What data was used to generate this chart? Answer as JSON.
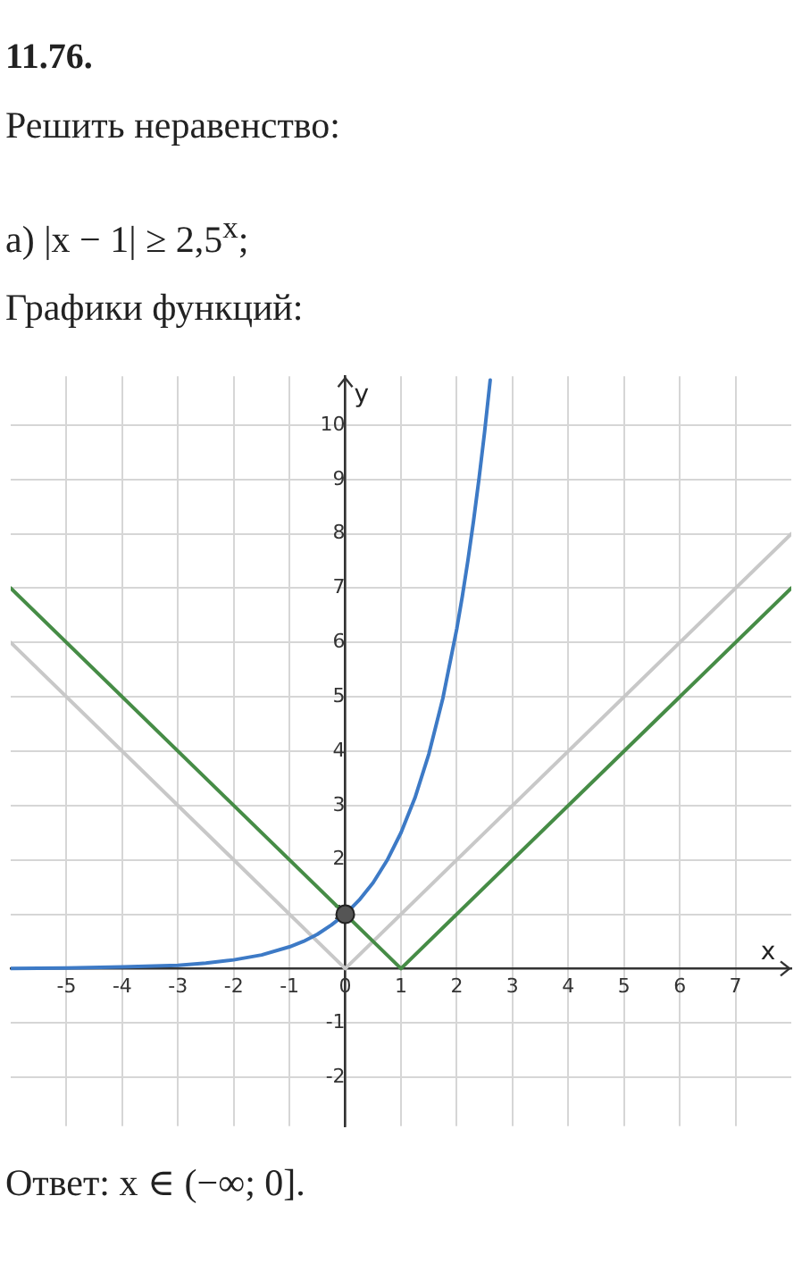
{
  "chart_data": {
    "type": "line",
    "title": "11.76.",
    "subtitle": "Решить неравенство:",
    "xlabel": "x",
    "ylabel": "y",
    "annotations": [
      "а) |x − 1| ≥ 2,5$^{x}$;",
      "Графики функций:",
      "Ответ: x ∈ (−∞; 0]."
    ],
    "series": [
      {
        "color": "#c8c8c8",
        "x": [
          -6,
          0,
          8
        ],
        "values": [
          6,
          0,
          8
        ]
      },
      {
        "color": "#468c46",
        "x": [
          -6,
          1,
          8
        ],
        "values": [
          7,
          0,
          7
        ]
      },
      {
        "color": "#3d7ac6",
        "x": [
          -6,
          -5,
          -4,
          -3,
          -2.5,
          -2,
          -1.5,
          -1,
          -0.75,
          -0.5,
          -0.25,
          0,
          0.25,
          0.5,
          0.75,
          1,
          1.25,
          1.5,
          1.75,
          2,
          2.1,
          2.2,
          2.3,
          2.4,
          2.5,
          2.6
        ],
        "values": [
          0,
          0.01,
          0.03,
          0.06,
          0.1,
          0.16,
          0.25,
          0.4,
          0.5,
          0.63,
          0.8,
          1,
          1.26,
          1.58,
          1.99,
          2.5,
          3.14,
          3.95,
          4.97,
          6.25,
          6.85,
          7.51,
          8.23,
          9.02,
          9.88,
          10.83
        ]
      },
      {
        "type": "scatter",
        "color": "#555555",
        "marker": "circle",
        "x": [
          0
        ],
        "values": [
          1
        ]
      }
    ],
    "xlim": [
      -6,
      8
    ],
    "ylim": [
      -2.9,
      10.9
    ],
    "xticks": [
      -5,
      -4,
      -3,
      -2,
      -1,
      0,
      1,
      2,
      3,
      4,
      5,
      6,
      7
    ],
    "yticks": [
      -2,
      -1,
      1,
      2,
      3,
      4,
      5,
      6,
      7,
      8,
      9,
      10
    ],
    "grid": true,
    "legend": false,
    "marker": "none"
  }
}
